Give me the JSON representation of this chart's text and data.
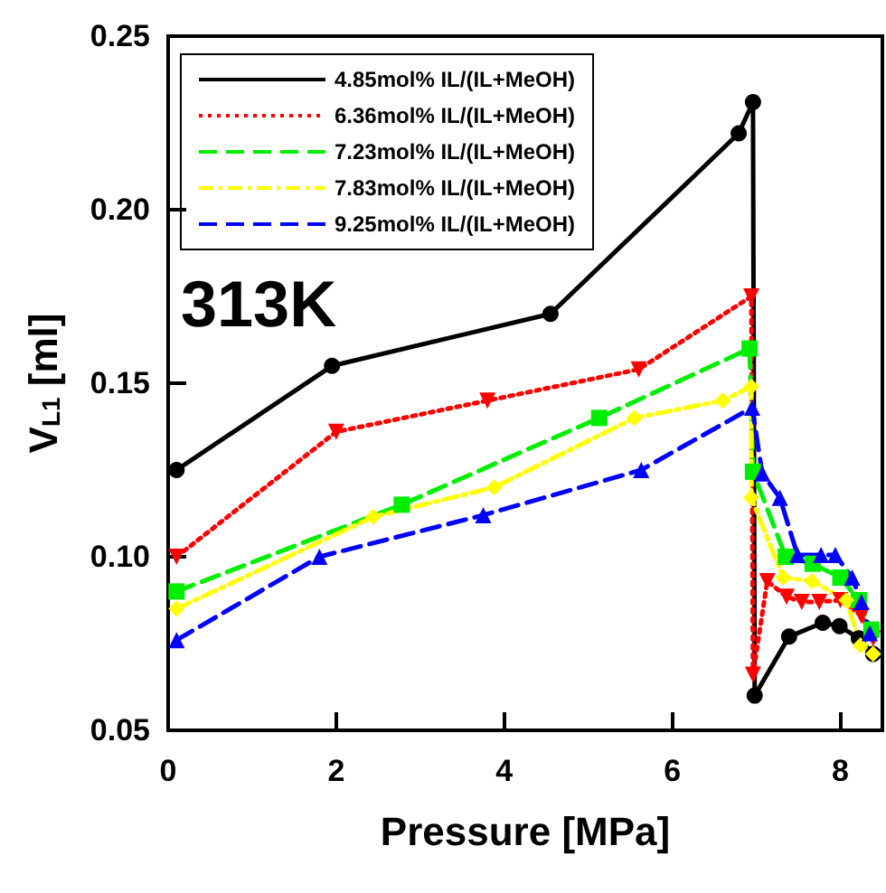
{
  "chart_data": {
    "type": "line",
    "xlabel": "Pressure [MPa]",
    "ylabel": "V$_{L1}$ [ml]",
    "annotations": [
      "313K"
    ],
    "xlim": [
      0,
      8.5
    ],
    "xticks": [
      0,
      2,
      4,
      6,
      8
    ],
    "ylim": [
      0.05,
      0.25
    ],
    "yticks": [
      0.05,
      {
        "value": 0.1,
        "label": "0.10"
      },
      0.15,
      {
        "value": 0.2,
        "label": "0.20"
      },
      0.25
    ],
    "grid": false,
    "legend": "top left",
    "series": [
      {
        "name": "4.85mol% IL/(IL+MeOH)",
        "color": "#000000",
        "marker": "circle",
        "line_style": "solid",
        "x": [
          0.1,
          1.95,
          4.55,
          6.79,
          6.96,
          6.98,
          7.39,
          7.79,
          7.99,
          8.22,
          8.39
        ],
        "values": [
          0.125,
          0.155,
          0.17,
          0.222,
          0.231,
          0.06,
          0.077,
          0.081,
          0.08,
          0.0765,
          0.072
        ]
      },
      {
        "name": "6.36mol% IL/(IL+MeOH)",
        "color": "#ff0000",
        "marker": "triangle-down",
        "line_style": "dotted",
        "x": [
          0.1,
          2.0,
          3.8,
          5.6,
          6.94,
          6.96,
          7.13,
          7.36,
          7.54,
          7.75,
          8.0,
          8.25,
          8.39
        ],
        "values": [
          0.1,
          0.136,
          0.145,
          0.154,
          0.175,
          0.066,
          0.093,
          0.0885,
          0.087,
          0.087,
          0.0875,
          0.083,
          0.0765
        ]
      },
      {
        "name": "7.23mol% IL/(IL+MeOH)",
        "color": "#00ee00",
        "marker": "square",
        "line_style": "dashed",
        "x": [
          0.1,
          2.78,
          5.13,
          6.92,
          6.96,
          7.35,
          7.67,
          8.0,
          8.22,
          8.37
        ],
        "values": [
          0.09,
          0.115,
          0.14,
          0.16,
          0.1245,
          0.1,
          0.098,
          0.094,
          0.0875,
          0.079
        ]
      },
      {
        "name": "7.83mol% IL/(IL+MeOH)",
        "color": "#ffff00",
        "marker": "diamond",
        "line_style": "dashdot",
        "x": [
          0.1,
          2.44,
          3.88,
          5.55,
          6.6,
          6.94,
          6.94,
          7.32,
          7.66,
          8.07,
          8.24,
          8.39
        ],
        "values": [
          0.085,
          0.1115,
          0.12,
          0.14,
          0.145,
          0.149,
          0.117,
          0.094,
          0.093,
          0.0875,
          0.0745,
          0.072
        ]
      },
      {
        "name": "9.25mol% IL/(IL+MeOH)",
        "color": "#0000ff",
        "marker": "triangle",
        "line_style": "dashed",
        "x": [
          0.1,
          1.8,
          3.75,
          5.63,
          6.95,
          7.07,
          7.28,
          7.49,
          7.77,
          7.94,
          8.14,
          8.25,
          8.35
        ],
        "values": [
          0.076,
          0.1,
          0.112,
          0.125,
          0.143,
          0.124,
          0.117,
          0.1005,
          0.1005,
          0.1005,
          0.094,
          0.087,
          0.078
        ]
      }
    ]
  }
}
